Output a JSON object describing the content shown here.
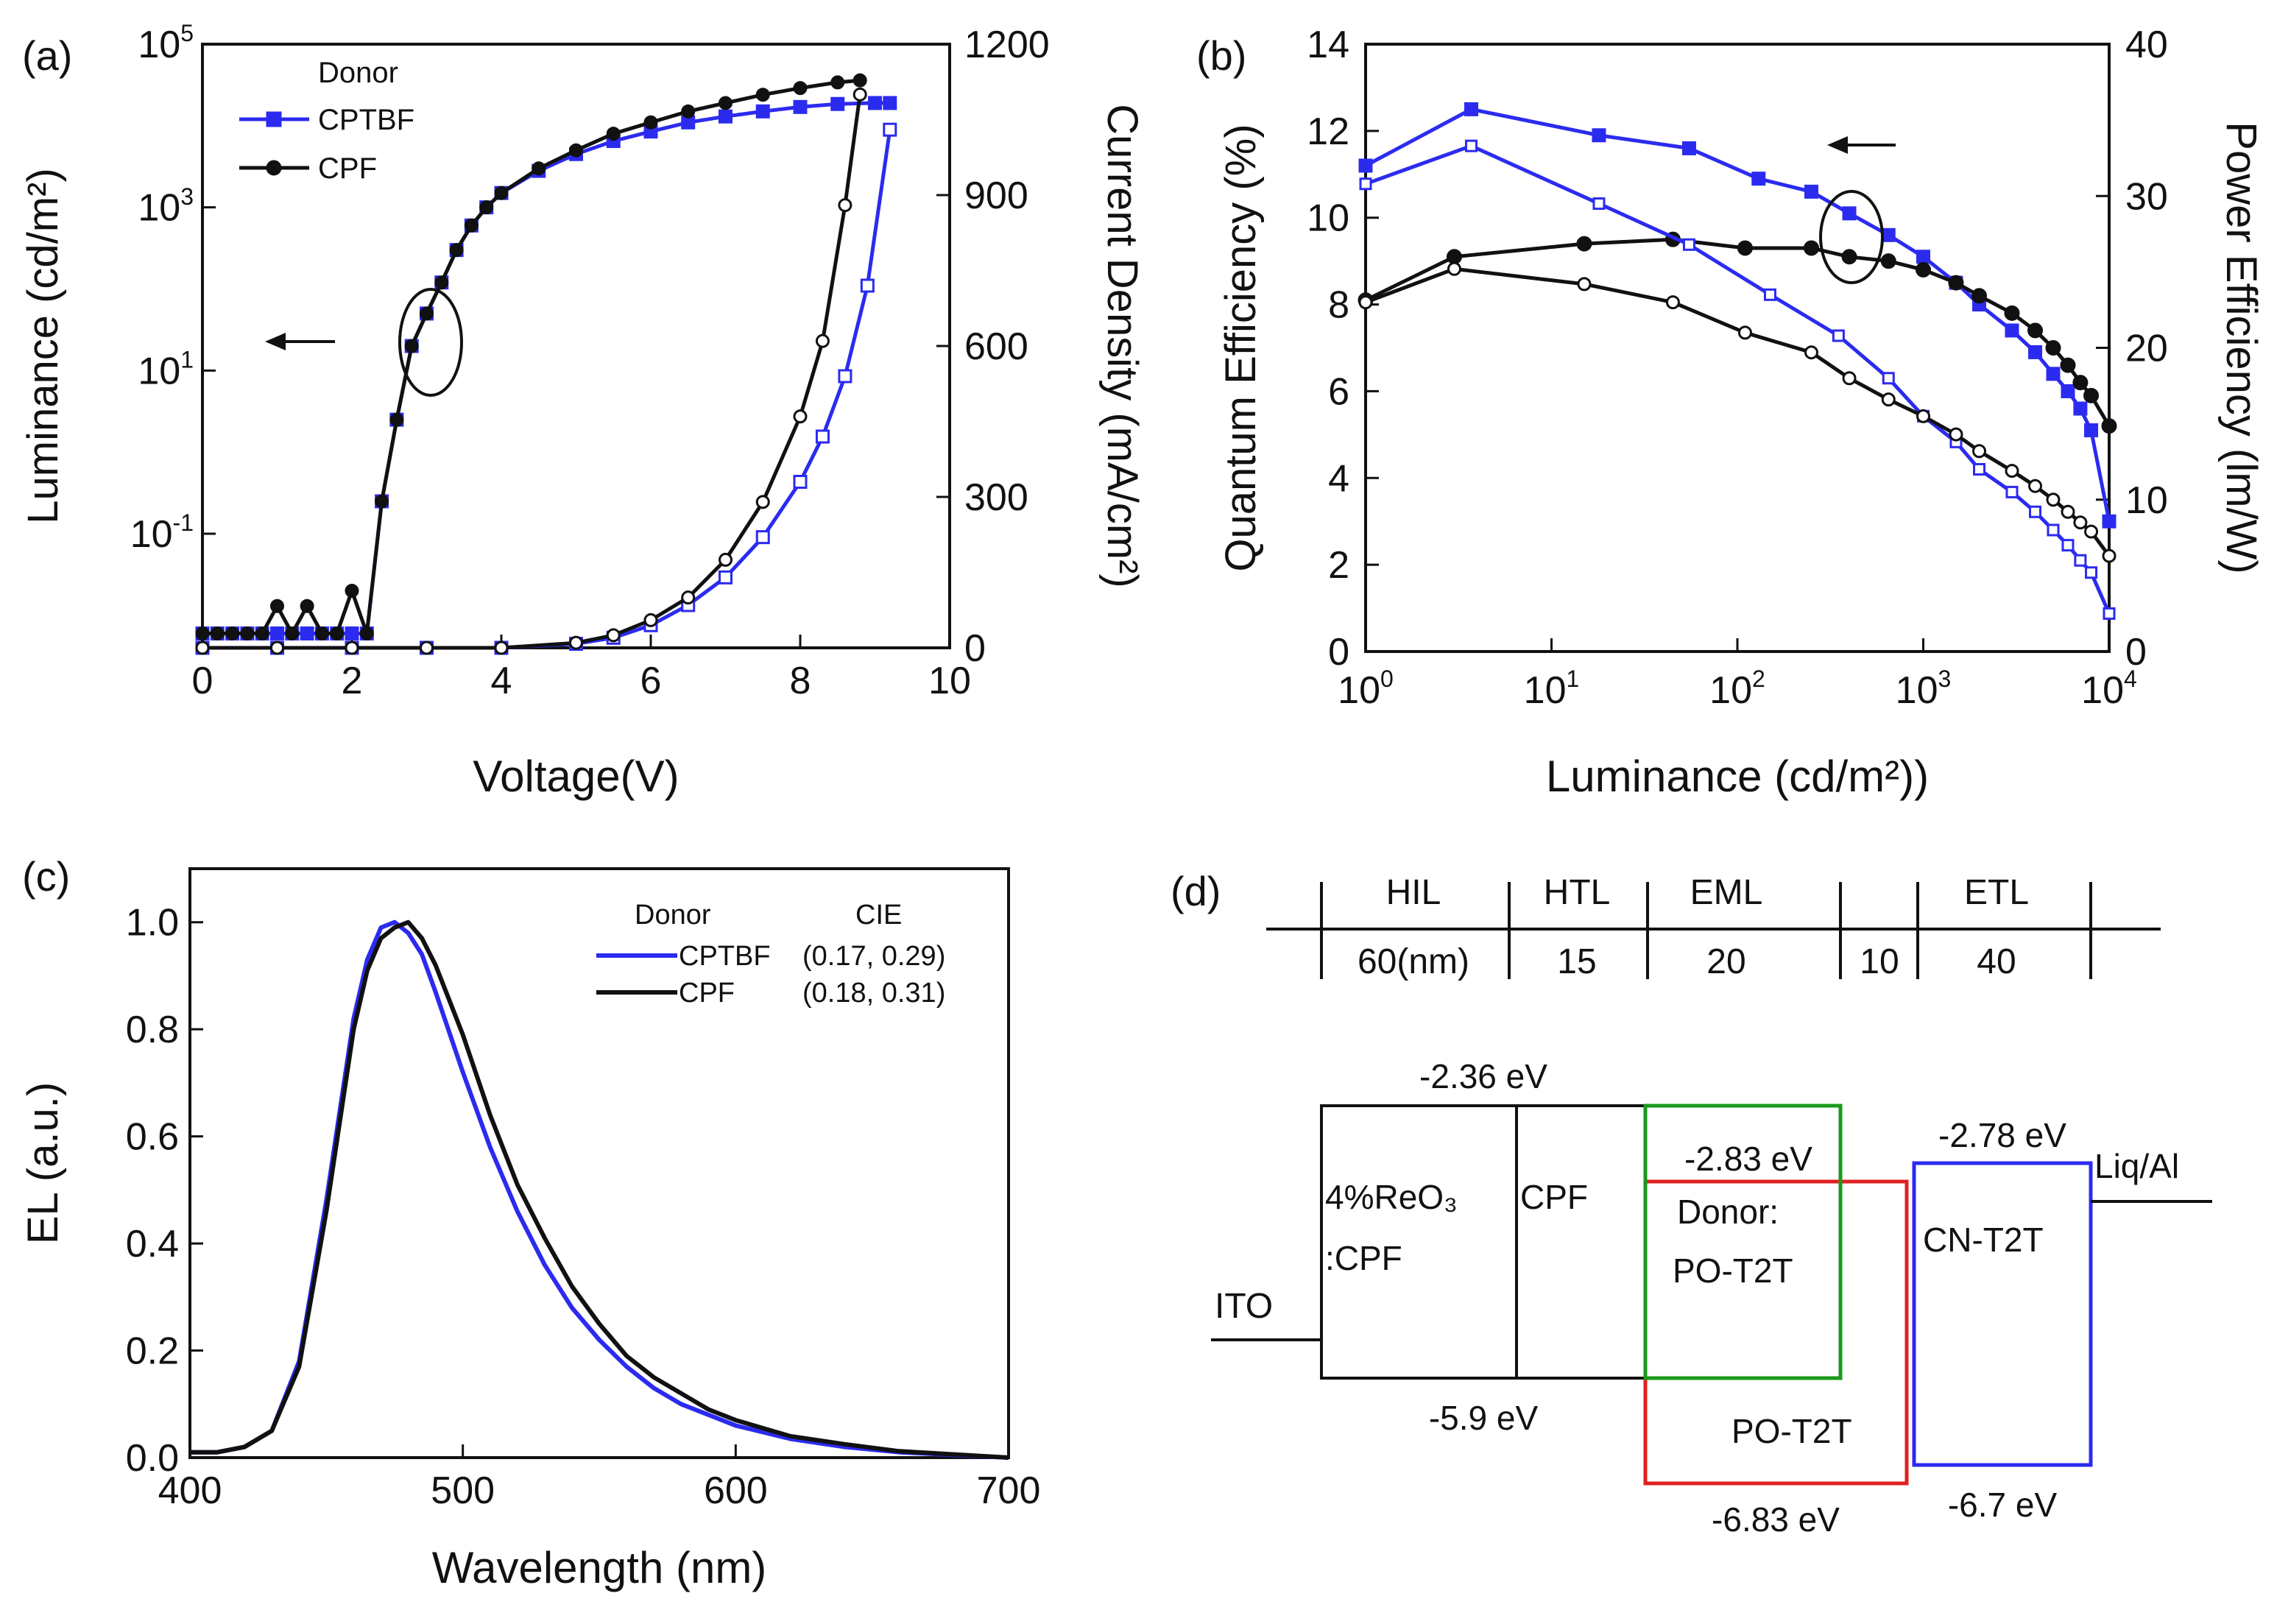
{
  "colors": {
    "blue": "#2b2bf0",
    "black": "#111111",
    "green": "#1a9a1a",
    "red": "#e02020"
  },
  "chart_data": [
    {
      "panel": "(a)",
      "type": "line",
      "xlabel": "Voltage(V)",
      "ylabel": "Luminance (cd/m²)",
      "y2label": "Current Density (mA/cm²)",
      "xlim": [
        0,
        10
      ],
      "xticks": [
        "0",
        "2",
        "4",
        "6",
        "8",
        "10"
      ],
      "yscale": "log",
      "ylim": [
        0.004,
        100000
      ],
      "yticks": [
        {
          "v": 0.1,
          "b": "10",
          "e": "-1"
        },
        {
          "v": 10,
          "b": "10",
          "e": "1"
        },
        {
          "v": 1000,
          "b": "10",
          "e": "3"
        },
        {
          "v": 100000,
          "b": "10",
          "e": "5"
        }
      ],
      "y2lim": [
        0,
        1200
      ],
      "y2ticks": [
        "0",
        "300",
        "600",
        "900",
        "1200"
      ],
      "legend": {
        "title": "Donor",
        "entries": [
          "CPTBF",
          "CPF"
        ]
      },
      "series": [
        {
          "name": "CPTBF",
          "kind": "luminance",
          "axis": "left",
          "x": [
            0,
            0.2,
            0.4,
            0.6,
            0.8,
            1.0,
            1.2,
            1.4,
            1.6,
            1.8,
            2.0,
            2.2,
            2.4,
            2.6,
            2.8,
            3.0,
            3.2,
            3.4,
            3.6,
            3.8,
            4.0,
            4.5,
            5.0,
            5.5,
            6.0,
            6.5,
            7.0,
            7.5,
            8.0,
            8.5,
            9.0,
            9.2
          ],
          "y": [
            0.006,
            0.006,
            0.006,
            0.006,
            0.006,
            0.006,
            0.006,
            0.006,
            0.006,
            0.006,
            0.006,
            0.006,
            0.25,
            2.5,
            20,
            50,
            120,
            300,
            600,
            1000,
            1500,
            2800,
            4500,
            6500,
            8500,
            11000,
            13000,
            15000,
            17000,
            18500,
            19000,
            19000
          ]
        },
        {
          "name": "CPF",
          "kind": "luminance",
          "axis": "left",
          "x": [
            0,
            0.2,
            0.4,
            0.6,
            0.8,
            1.0,
            1.2,
            1.4,
            1.6,
            1.8,
            2.0,
            2.2,
            2.4,
            2.6,
            2.8,
            3.0,
            3.2,
            3.4,
            3.6,
            3.8,
            4.0,
            4.5,
            5.0,
            5.5,
            6.0,
            6.5,
            7.0,
            7.5,
            8.0,
            8.5,
            8.8
          ],
          "y": [
            0.006,
            0.006,
            0.006,
            0.006,
            0.006,
            0.013,
            0.006,
            0.013,
            0.006,
            0.006,
            0.02,
            0.006,
            0.25,
            2.5,
            20,
            50,
            120,
            300,
            600,
            1000,
            1500,
            3000,
            5000,
            8000,
            11000,
            15000,
            19000,
            24000,
            29000,
            34000,
            36000
          ]
        },
        {
          "name": "CPTBF",
          "kind": "current density",
          "axis": "right",
          "x": [
            0,
            1,
            2,
            3,
            4,
            5,
            5.5,
            6,
            6.5,
            7,
            7.5,
            8,
            8.3,
            8.6,
            8.9,
            9.2
          ],
          "y": [
            0,
            0,
            0,
            0,
            0,
            8,
            20,
            45,
            85,
            140,
            220,
            330,
            420,
            540,
            720,
            1030
          ]
        },
        {
          "name": "CPF",
          "kind": "current density",
          "axis": "right",
          "x": [
            0,
            1,
            2,
            3,
            4,
            5,
            5.5,
            6,
            6.5,
            7,
            7.5,
            8,
            8.3,
            8.6,
            8.8
          ],
          "y": [
            0,
            0,
            0,
            0,
            0,
            10,
            25,
            55,
            100,
            175,
            290,
            460,
            610,
            880,
            1100
          ]
        }
      ]
    },
    {
      "panel": "(b)",
      "type": "line",
      "xlabel": "Luminance (cd/m²))",
      "ylabel": "Quantum Efficiency  (%)",
      "y2label": "Power Efficiency (lm/W)",
      "xscale": "log",
      "xlim": [
        1,
        10000
      ],
      "xticks": [
        {
          "v": 1,
          "b": "10",
          "e": "0"
        },
        {
          "v": 10,
          "b": "10",
          "e": "1"
        },
        {
          "v": 100,
          "b": "10",
          "e": "2"
        },
        {
          "v": 1000,
          "b": "10",
          "e": "3"
        },
        {
          "v": 10000,
          "b": "10",
          "e": "4"
        }
      ],
      "ylim": [
        0,
        14
      ],
      "yticks": [
        "0",
        "2",
        "4",
        "6",
        "8",
        "10",
        "12",
        "14"
      ],
      "y2lim": [
        0,
        40
      ],
      "y2ticks": [
        "0",
        "10",
        "20",
        "30",
        "40"
      ],
      "series": [
        {
          "name": "CPTBF",
          "kind": "quantum efficiency",
          "axis": "left",
          "x": [
            1,
            3.7,
            18,
            55,
            130,
            250,
            400,
            650,
            1000,
            1500,
            2000,
            3000,
            4000,
            5000,
            6000,
            7000,
            8000,
            10000
          ],
          "y": [
            11.2,
            12.5,
            11.9,
            11.6,
            10.9,
            10.6,
            10.1,
            9.6,
            9.1,
            8.5,
            8.0,
            7.4,
            6.9,
            6.4,
            6.0,
            5.6,
            5.1,
            3.0
          ]
        },
        {
          "name": "CPF",
          "kind": "quantum efficiency",
          "axis": "left",
          "x": [
            1,
            3,
            15,
            45,
            110,
            250,
            400,
            650,
            1000,
            1500,
            2000,
            3000,
            4000,
            5000,
            6000,
            7000,
            8000,
            10000
          ],
          "y": [
            8.1,
            9.1,
            9.4,
            9.5,
            9.3,
            9.3,
            9.1,
            9.0,
            8.8,
            8.5,
            8.2,
            7.8,
            7.4,
            7.0,
            6.6,
            6.2,
            5.9,
            5.2
          ]
        },
        {
          "name": "CPTBF",
          "kind": "power efficiency",
          "axis": "right",
          "x": [
            1,
            3.7,
            18,
            55,
            150,
            350,
            650,
            1000,
            1500,
            2000,
            3000,
            4000,
            5000,
            6000,
            7000,
            8000,
            10000
          ],
          "y": [
            30.8,
            33.3,
            29.5,
            26.8,
            23.5,
            20.8,
            18.0,
            15.5,
            13.8,
            12.0,
            10.5,
            9.2,
            8.0,
            7.0,
            6.0,
            5.2,
            2.5
          ]
        },
        {
          "name": "CPF",
          "kind": "power efficiency",
          "axis": "right",
          "x": [
            1,
            3,
            15,
            45,
            110,
            250,
            400,
            650,
            1000,
            1500,
            2000,
            3000,
            4000,
            5000,
            6000,
            7000,
            8000,
            10000
          ],
          "y": [
            23.0,
            25.2,
            24.2,
            23.0,
            21.0,
            19.7,
            18.0,
            16.6,
            15.5,
            14.3,
            13.2,
            11.9,
            10.9,
            10.0,
            9.2,
            8.5,
            7.9,
            6.3
          ]
        }
      ]
    },
    {
      "panel": "(c)",
      "type": "line",
      "xlabel": "Wavelength (nm)",
      "ylabel": "EL (a.u.)",
      "xlim": [
        400,
        700
      ],
      "xticks": [
        "400",
        "500",
        "600",
        "700"
      ],
      "ylim": [
        0,
        1.1
      ],
      "yticks": [
        "0.0",
        "0.2",
        "0.4",
        "0.6",
        "0.8",
        "1.0"
      ],
      "legend": {
        "title": "Donor",
        "cie_title": "CIE",
        "entries": [
          {
            "name": "CPTBF",
            "cie": "(0.17, 0.29)"
          },
          {
            "name": "CPF",
            "cie": "(0.18, 0.31)"
          }
        ]
      },
      "series": [
        {
          "name": "CPTBF",
          "x": [
            400,
            410,
            420,
            430,
            440,
            450,
            460,
            465,
            470,
            475,
            480,
            485,
            490,
            500,
            510,
            520,
            530,
            540,
            550,
            560,
            570,
            580,
            590,
            600,
            620,
            640,
            660,
            680,
            700
          ],
          "y": [
            0.01,
            0.01,
            0.02,
            0.05,
            0.18,
            0.48,
            0.82,
            0.93,
            0.99,
            1.0,
            0.98,
            0.94,
            0.87,
            0.72,
            0.58,
            0.46,
            0.36,
            0.28,
            0.22,
            0.17,
            0.13,
            0.1,
            0.08,
            0.06,
            0.035,
            0.02,
            0.01,
            0.005,
            0.0
          ]
        },
        {
          "name": "CPF",
          "x": [
            400,
            410,
            420,
            430,
            440,
            450,
            460,
            465,
            470,
            475,
            480,
            485,
            490,
            500,
            510,
            520,
            530,
            540,
            550,
            560,
            570,
            580,
            590,
            600,
            620,
            640,
            660,
            680,
            700
          ],
          "y": [
            0.01,
            0.01,
            0.02,
            0.05,
            0.17,
            0.46,
            0.8,
            0.91,
            0.97,
            0.99,
            1.0,
            0.97,
            0.92,
            0.79,
            0.64,
            0.51,
            0.41,
            0.32,
            0.25,
            0.19,
            0.15,
            0.12,
            0.09,
            0.07,
            0.04,
            0.025,
            0.012,
            0.006,
            0.0
          ]
        }
      ]
    },
    {
      "panel": "(d)",
      "type": "diagram",
      "layers": [
        "HIL",
        "HTL",
        "EML",
        "ETL"
      ],
      "thicknesses": [
        "60(nm)",
        "15",
        "20",
        "10",
        "40"
      ],
      "materials": {
        "hil": "4%ReO₃",
        "hil2": ":CPF",
        "htl": "CPF",
        "eml_1": "Donor:",
        "eml_2": "PO-T2T",
        "eml_red": "PO-T2T",
        "etl": "CN-T2T",
        "anode": "ITO",
        "cathode": "Liq/Al"
      },
      "energies": {
        "cpf_lumo": "-2.36 eV",
        "cpf_homo": "-5.9 eV",
        "po_lumo": "-2.83 eV",
        "po_homo": "-6.83 eV",
        "cn_lumo": "-2.78 eV",
        "cn_homo": "-6.7 eV"
      }
    }
  ]
}
